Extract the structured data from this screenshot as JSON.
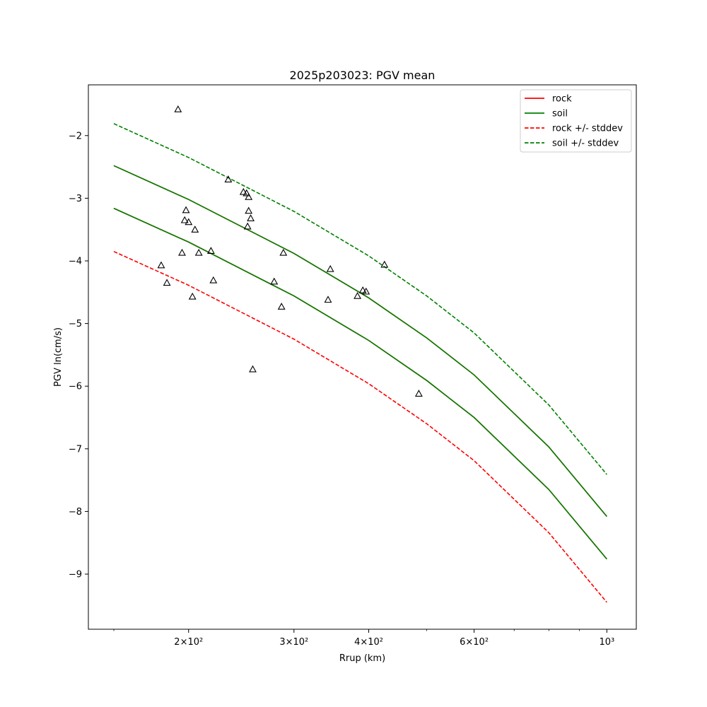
{
  "chart_data": {
    "type": "line",
    "title": "2025p203023: PGV mean",
    "xlabel": "Rrup (km)",
    "ylabel": "PGV ln(cm/s)",
    "xscale": "log",
    "xlim": [
      136,
      1120
    ],
    "ylim": [
      -9.88,
      -1.19
    ],
    "x_ticks": [
      {
        "value": 200,
        "label": "2×10²"
      },
      {
        "value": 300,
        "label": "3×10²"
      },
      {
        "value": 400,
        "label": "4×10²"
      },
      {
        "value": 600,
        "label": "6×10²"
      },
      {
        "value": 1000,
        "label": "10³"
      }
    ],
    "y_ticks": [
      {
        "value": -2,
        "label": "−2"
      },
      {
        "value": -3,
        "label": "−3"
      },
      {
        "value": -4,
        "label": "−4"
      },
      {
        "value": -5,
        "label": "−5"
      },
      {
        "value": -6,
        "label": "−6"
      },
      {
        "value": -7,
        "label": "−7"
      },
      {
        "value": -8,
        "label": "−8"
      },
      {
        "value": -9,
        "label": "−9"
      }
    ],
    "legend_position": "top-right",
    "series": [
      {
        "name": "rock",
        "color": "#ff0000",
        "style": "solid",
        "x": [
          150,
          200,
          300,
          400,
          500,
          600,
          800,
          1000
        ],
        "y": [
          -2.48,
          -3.02,
          -3.88,
          -4.59,
          -5.23,
          -5.82,
          -6.97,
          -8.08
        ]
      },
      {
        "name": "soil",
        "color": "#008000",
        "style": "solid",
        "x": [
          150,
          200,
          300,
          400,
          500,
          600,
          800,
          1000
        ],
        "y": [
          -2.48,
          -3.02,
          -3.88,
          -4.59,
          -5.23,
          -5.82,
          -6.97,
          -8.08
        ]
      },
      {
        "name": "rock",
        "color": "#ff0000",
        "style": "solid",
        "x": [
          150,
          200,
          300,
          400,
          500,
          600,
          800,
          1000
        ],
        "y": [
          -3.16,
          -3.7,
          -4.56,
          -5.27,
          -5.91,
          -6.5,
          -7.65,
          -8.76
        ]
      },
      {
        "name": "soil",
        "color": "#008000",
        "style": "solid",
        "x": [
          150,
          200,
          300,
          400,
          500,
          600,
          800,
          1000
        ],
        "y": [
          -3.16,
          -3.7,
          -4.56,
          -5.27,
          -5.91,
          -6.5,
          -7.65,
          -8.76
        ]
      },
      {
        "name": "rock +/- stddev",
        "color": "#ff0000",
        "style": "dashed",
        "x": [
          150,
          200,
          300,
          400,
          500,
          600,
          800,
          1000
        ],
        "y": [
          -3.85,
          -4.39,
          -5.25,
          -5.96,
          -6.6,
          -7.19,
          -8.34,
          -9.45
        ]
      },
      {
        "name": "soil +/- stddev",
        "color": "#008000",
        "style": "dashed",
        "x": [
          150,
          200,
          300,
          400,
          500,
          600,
          800,
          1000
        ],
        "y": [
          -1.81,
          -2.35,
          -3.21,
          -3.92,
          -4.56,
          -5.15,
          -6.3,
          -7.41
        ]
      }
    ],
    "observations": {
      "marker": "triangle",
      "color": "#000000",
      "points": [
        [
          192,
          -1.58
        ],
        [
          180,
          -4.07
        ],
        [
          184,
          -4.35
        ],
        [
          195,
          -3.87
        ],
        [
          197,
          -3.35
        ],
        [
          198,
          -3.19
        ],
        [
          200,
          -3.38
        ],
        [
          203,
          -4.57
        ],
        [
          205,
          -3.5
        ],
        [
          208,
          -3.87
        ],
        [
          218,
          -3.84
        ],
        [
          220,
          -4.31
        ],
        [
          233,
          -2.7
        ],
        [
          247,
          -2.9
        ],
        [
          250,
          -2.92
        ],
        [
          252,
          -2.98
        ],
        [
          252,
          -3.2
        ],
        [
          251,
          -3.45
        ],
        [
          254,
          -3.32
        ],
        [
          256,
          -5.73
        ],
        [
          278,
          -4.33
        ],
        [
          286,
          -4.73
        ],
        [
          288,
          -3.87
        ],
        [
          342,
          -4.62
        ],
        [
          345,
          -4.13
        ],
        [
          383,
          -4.56
        ],
        [
          391,
          -4.47
        ],
        [
          396,
          -4.49
        ],
        [
          425,
          -4.06
        ],
        [
          485,
          -6.12
        ]
      ]
    }
  }
}
